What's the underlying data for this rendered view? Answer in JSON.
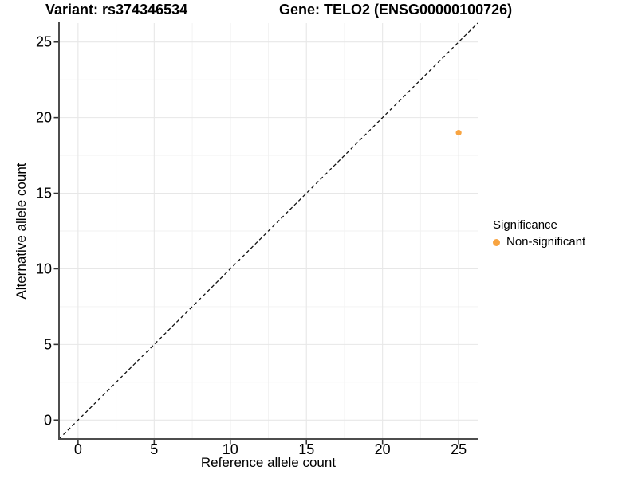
{
  "chart_data": {
    "type": "scatter",
    "title_parts": [
      "Variant: rs374346534",
      "Gene: TELO2 (ENSG00000100726)"
    ],
    "variant": "rs374346534",
    "gene_symbol": "TELO2",
    "gene_id": "ENSG00000100726",
    "xlabel": "Reference allele count",
    "ylabel": "Alternative allele count",
    "xlim": [
      -1.25,
      26.25
    ],
    "ylim": [
      -1.25,
      26.25
    ],
    "x_ticks": [
      0,
      5,
      10,
      15,
      20,
      25
    ],
    "y_ticks": [
      0,
      5,
      10,
      15,
      20,
      25
    ],
    "x_minor_ticks": [
      2.5,
      7.5,
      12.5,
      17.5,
      22.5
    ],
    "y_minor_ticks": [
      2.5,
      7.5,
      12.5,
      17.5,
      22.5
    ],
    "grid": "major and minor gridlines, white panel background",
    "series": [
      {
        "name": "Non-significant",
        "color": "#F8A441",
        "points": [
          {
            "x": 25,
            "y": 19
          }
        ]
      }
    ],
    "reference_line": {
      "kind": "identity y=x",
      "style": "dashed",
      "color": "#111111",
      "from": [
        -1.25,
        -1.25
      ],
      "to": [
        26.25,
        26.25
      ]
    },
    "legend": {
      "title": "Significance",
      "position": "right",
      "items": [
        {
          "label": "Non-significant",
          "color": "#F8A441"
        }
      ]
    }
  },
  "colors": {
    "background": "#FFFFFF",
    "grid_major": "#E7E7E7",
    "grid_minor": "#F2F2F2",
    "axis_line": "#4D4D4D",
    "tick_mark": "#333333",
    "text": "#000000",
    "point": "#F8A441"
  }
}
